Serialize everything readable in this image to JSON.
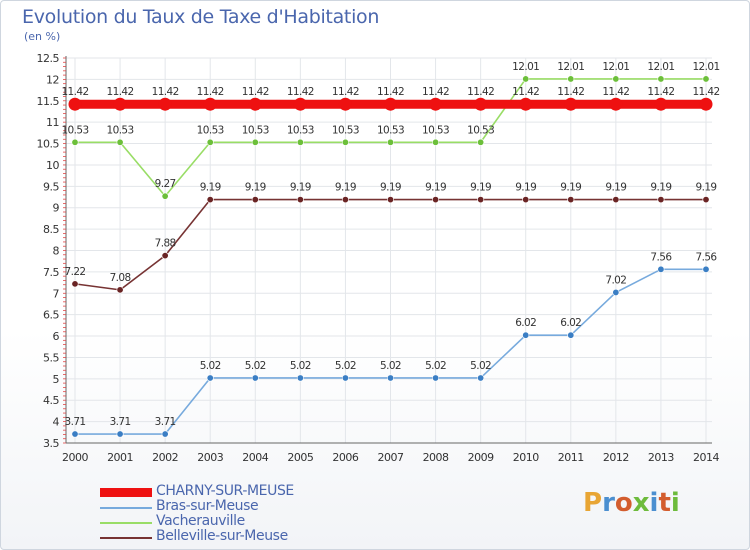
{
  "title": "Evolution du Taux de Taxe d'Habitation",
  "subtitle": "(en %)",
  "logo": {
    "text": "Proxiti",
    "colors": [
      "#e8a534",
      "#4b8fd0",
      "#d35d2e",
      "#6dbb3c",
      "#4b8fd0",
      "#d35d2e",
      "#6dbb3c"
    ]
  },
  "chart_data": {
    "type": "line",
    "categories": [
      "2000",
      "2001",
      "2002",
      "2003",
      "2004",
      "2005",
      "2006",
      "2007",
      "2008",
      "2009",
      "2010",
      "2011",
      "2012",
      "2013",
      "2014"
    ],
    "ylim": [
      3.5,
      12.5
    ],
    "yticks": [
      "3.5",
      "4",
      "4.5",
      "5",
      "5.5",
      "6",
      "6.5",
      "7",
      "7.5",
      "8",
      "8.5",
      "9",
      "9.5",
      "10",
      "10.5",
      "11",
      "11.5",
      "12",
      "12.5"
    ],
    "series": [
      {
        "name": "CHARNY-SUR-MEUSE",
        "color": "#ee1111",
        "thick": true,
        "values": [
          11.42,
          11.42,
          11.42,
          11.42,
          11.42,
          11.42,
          11.42,
          11.42,
          11.42,
          11.42,
          11.42,
          11.42,
          11.42,
          11.42,
          11.42
        ],
        "labels": [
          "11.42",
          "11.42",
          "11.42",
          "11.42",
          "11.42",
          "11.42",
          "11.42",
          "11.42",
          "11.42",
          "11.42",
          "11.42",
          "11.42",
          "11.42",
          "11.42",
          "11.42"
        ]
      },
      {
        "name": "Bras-sur-Meuse",
        "color": "#77aadd",
        "marker": "#3a7ec4",
        "values": [
          3.71,
          3.71,
          3.71,
          5.02,
          5.02,
          5.02,
          5.02,
          5.02,
          5.02,
          5.02,
          6.02,
          6.02,
          7.02,
          7.56,
          7.56
        ],
        "labels": [
          "3.71",
          "3.71",
          "3.71",
          "5.02",
          "5.02",
          "5.02",
          "5.02",
          "5.02",
          "5.02",
          "5.02",
          "6.02",
          "6.02",
          "7.02",
          "7.56",
          "7.56"
        ]
      },
      {
        "name": "Vacherauville",
        "color": "#99dd66",
        "marker": "#6cbf3a",
        "values": [
          10.53,
          10.53,
          9.27,
          10.53,
          10.53,
          10.53,
          10.53,
          10.53,
          10.53,
          10.53,
          12.01,
          12.01,
          12.01,
          12.01,
          12.01
        ],
        "labels": [
          "10.53",
          "10.53",
          "9.27",
          "10.53",
          "10.53",
          "10.53",
          "10.53",
          "10.53",
          "10.53",
          "10.53",
          "12.01",
          "12.01",
          "12.01",
          "12.01",
          "12.01"
        ]
      },
      {
        "name": "Belleville-sur-Meuse",
        "color": "#773333",
        "marker": "#6a2424",
        "values": [
          7.22,
          7.08,
          7.88,
          9.19,
          9.19,
          9.19,
          9.19,
          9.19,
          9.19,
          9.19,
          9.19,
          9.19,
          9.19,
          9.19,
          9.19
        ],
        "labels": [
          "7.22",
          "7.08",
          "7.88",
          "9.19",
          "9.19",
          "9.19",
          "9.19",
          "9.19",
          "9.19",
          "9.19",
          "9.19",
          "9.19",
          "9.19",
          "9.19",
          "9.19"
        ]
      }
    ]
  }
}
